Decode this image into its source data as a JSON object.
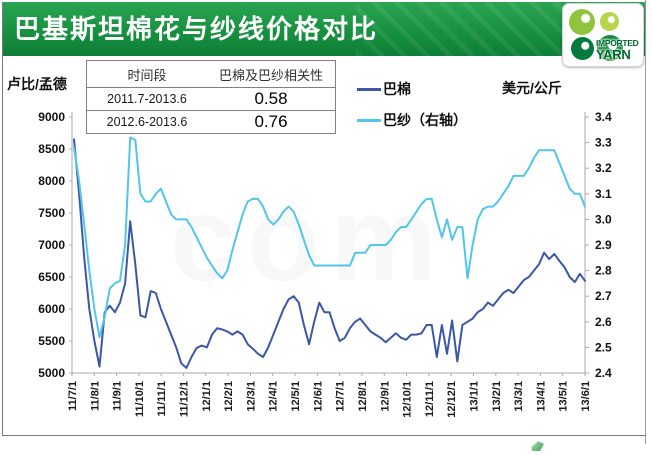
{
  "header": {
    "title": "巴基斯坦棉花与纱线价格对比"
  },
  "logo": {
    "line1": "IMPORTED",
    "line2": "YARN"
  },
  "correlation_table": {
    "headers": [
      "时间段",
      "巴棉及巴纱相关性"
    ],
    "rows": [
      [
        "2011.7-2013.6",
        "0.58"
      ],
      [
        "2012.6-2013.6",
        "0.76"
      ]
    ]
  },
  "chart": {
    "left_axis_title": "卢比/孟德",
    "right_axis_title": "美元/公斤",
    "legend": [
      {
        "label": "巴棉",
        "color": "#3a57a8"
      },
      {
        "label": "巴纱（右轴）",
        "color": "#52c5e9"
      }
    ]
  },
  "chart_data": {
    "type": "line",
    "title": "巴基斯坦棉花与纱线价格对比",
    "grid": false,
    "legend_position": "top",
    "x_tick_labels": [
      "11/7/1",
      "11/8/1",
      "11/9/1",
      "11/10/1",
      "11/11/1",
      "11/12/1",
      "12/1/1",
      "12/2/1",
      "12/3/1",
      "12/4/1",
      "12/5/1",
      "12/6/1",
      "12/7/1",
      "12/8/1",
      "12/9/1",
      "12/10/1",
      "12/11/1",
      "12/12/1",
      "13/1/1",
      "13/2/1",
      "13/3/1",
      "13/4/1",
      "13/5/1",
      "13/6/1"
    ],
    "left_axis": {
      "title": "卢比/孟德",
      "range": [
        5000,
        9000
      ],
      "ticks": [
        9000,
        8500,
        8000,
        7500,
        7000,
        6500,
        6000,
        5500,
        5000
      ]
    },
    "right_axis": {
      "title": "美元/公斤",
      "range": [
        2.4,
        3.4
      ],
      "ticks": [
        "3.4",
        "3.3",
        "3.2",
        "3.1",
        "3.0",
        "2.9",
        "2.8",
        "2.7",
        "2.6",
        "2.5",
        "2.4"
      ]
    },
    "series": [
      {
        "name": "巴棉",
        "axis": "left",
        "color": "#3a57a8",
        "values": [
          8650,
          7800,
          6800,
          6000,
          5500,
          5100,
          5950,
          6050,
          5950,
          6100,
          6400,
          7370,
          6700,
          5900,
          5870,
          6280,
          6250,
          6000,
          5800,
          5600,
          5400,
          5150,
          5080,
          5250,
          5390,
          5430,
          5400,
          5600,
          5700,
          5680,
          5650,
          5600,
          5650,
          5600,
          5450,
          5380,
          5300,
          5250,
          5400,
          5600,
          5800,
          6000,
          6150,
          6200,
          6100,
          5750,
          5450,
          5800,
          6100,
          5950,
          5950,
          5700,
          5500,
          5550,
          5700,
          5800,
          5850,
          5750,
          5650,
          5600,
          5550,
          5480,
          5550,
          5620,
          5550,
          5520,
          5600,
          5600,
          5620,
          5750,
          5750,
          5250,
          5750,
          5300,
          5820,
          5180,
          5750,
          5800,
          5850,
          5950,
          6000,
          6100,
          6050,
          6150,
          6250,
          6300,
          6250,
          6350,
          6450,
          6500,
          6600,
          6700,
          6880,
          6780,
          6860,
          6750,
          6650,
          6500,
          6420,
          6550,
          6440
        ]
      },
      {
        "name": "巴纱（右轴）",
        "axis": "right",
        "color": "#52c5e9",
        "values": [
          3.28,
          3.15,
          2.98,
          2.8,
          2.65,
          2.54,
          2.62,
          2.73,
          2.75,
          2.76,
          2.9,
          3.32,
          3.31,
          3.1,
          3.07,
          3.07,
          3.1,
          3.12,
          3.07,
          3.02,
          3.0,
          3.0,
          3.0,
          2.97,
          2.93,
          2.89,
          2.85,
          2.82,
          2.79,
          2.77,
          2.8,
          2.88,
          2.95,
          3.02,
          3.07,
          3.08,
          3.08,
          3.05,
          3.0,
          2.98,
          3.0,
          3.03,
          3.05,
          3.03,
          2.98,
          2.92,
          2.86,
          2.82,
          2.82,
          2.82,
          2.82,
          2.82,
          2.82,
          2.82,
          2.82,
          2.87,
          2.87,
          2.87,
          2.9,
          2.9,
          2.9,
          2.9,
          2.92,
          2.95,
          2.97,
          2.97,
          3.0,
          3.03,
          3.06,
          3.08,
          3.08,
          3.0,
          2.93,
          3.0,
          2.92,
          2.97,
          2.97,
          2.77,
          2.9,
          3.0,
          3.04,
          3.05,
          3.05,
          3.07,
          3.1,
          3.13,
          3.17,
          3.17,
          3.17,
          3.2,
          3.24,
          3.27,
          3.27,
          3.27,
          3.27,
          3.22,
          3.17,
          3.12,
          3.1,
          3.1,
          3.05
        ]
      }
    ]
  },
  "watermark_text": "com"
}
